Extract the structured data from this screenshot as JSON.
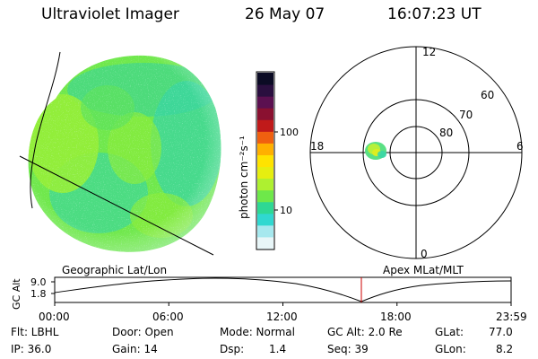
{
  "header": {
    "instrument": "Ultraviolet Imager",
    "date": "26 May 07",
    "time": "16:07:23 UT"
  },
  "colorbar": {
    "unit_label": "photon cm⁻²s⁻¹",
    "tick_labels": [
      "100",
      "10"
    ],
    "colors_top_to_bottom": [
      "#0b0b24",
      "#2a0f3f",
      "#5b1050",
      "#8a1030",
      "#c01a1a",
      "#f06010",
      "#ffb000",
      "#ffe300",
      "#e6ee10",
      "#aef030",
      "#6ee84a",
      "#2ed894",
      "#30d8d0",
      "#a6e8ee",
      "#e8f6f8"
    ]
  },
  "left_panel": {
    "caption": "Geographic Lat/Lon"
  },
  "right_panel": {
    "caption": "Apex MLat/MLT",
    "mlt_labels": {
      "top": "12",
      "left": "18",
      "right": "6",
      "bottom": "0"
    },
    "mlat_labels": [
      "60",
      "70",
      "80"
    ]
  },
  "altitude_plot": {
    "ylabel": "GC Alt",
    "y_ticks": [
      "9.0",
      "1.8"
    ],
    "x_ticks": [
      "00:00",
      "06:00",
      "12:00",
      "18:00",
      "23:59"
    ],
    "current_marker_time": "16:07",
    "current_marker_color": "#cc0000"
  },
  "status": {
    "filter": "Flt: LBHL",
    "ip": "IP: 36.0",
    "door": "Door: Open",
    "gain": "Gain: 14",
    "mode": "Mode: Normal",
    "dsp_label": "Dsp:",
    "dsp_value": "1.4",
    "gc_alt": "GC Alt: 2.0 Re",
    "seq": "Seq: 39",
    "glat_label": "GLat:",
    "glat_value": "77.0",
    "glon_label": "GLon:",
    "glon_value": "8.2"
  }
}
